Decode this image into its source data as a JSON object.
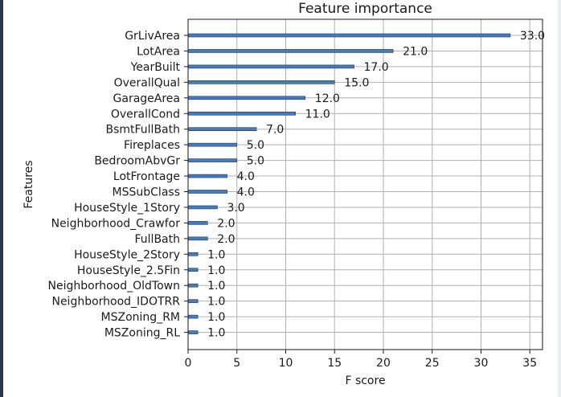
{
  "chart_data": {
    "type": "bar",
    "orientation": "horizontal",
    "title": "Feature importance",
    "xlabel": "F score",
    "ylabel": "Features",
    "xlim": [
      0,
      36.3
    ],
    "xticks": [
      0,
      5,
      10,
      15,
      20,
      25,
      30,
      35
    ],
    "grid": true,
    "bar_color": "#4a7ab5",
    "categories": [
      "GrLivArea",
      "LotArea",
      "YearBuilt",
      "OverallQual",
      "GarageArea",
      "OverallCond",
      "BsmtFullBath",
      "Fireplaces",
      "BedroomAbvGr",
      "LotFrontage",
      "MSSubClass",
      "HouseStyle_1Story",
      "Neighborhood_Crawfor",
      "FullBath",
      "HouseStyle_2Story",
      "HouseStyle_2.5Fin",
      "Neighborhood_OldTown",
      "Neighborhood_IDOTRR",
      "MSZoning_RM",
      "MSZoning_RL"
    ],
    "values": [
      33.0,
      21.0,
      17.0,
      15.0,
      12.0,
      11.0,
      7.0,
      5.0,
      5.0,
      4.0,
      4.0,
      3.0,
      2.0,
      2.0,
      1.0,
      1.0,
      1.0,
      1.0,
      1.0,
      1.0
    ],
    "value_labels": [
      "33.0",
      "21.0",
      "17.0",
      "15.0",
      "12.0",
      "11.0",
      "7.0",
      "5.0",
      "5.0",
      "4.0",
      "4.0",
      "3.0",
      "2.0",
      "2.0",
      "1.0",
      "1.0",
      "1.0",
      "1.0",
      "1.0",
      "1.0"
    ]
  }
}
